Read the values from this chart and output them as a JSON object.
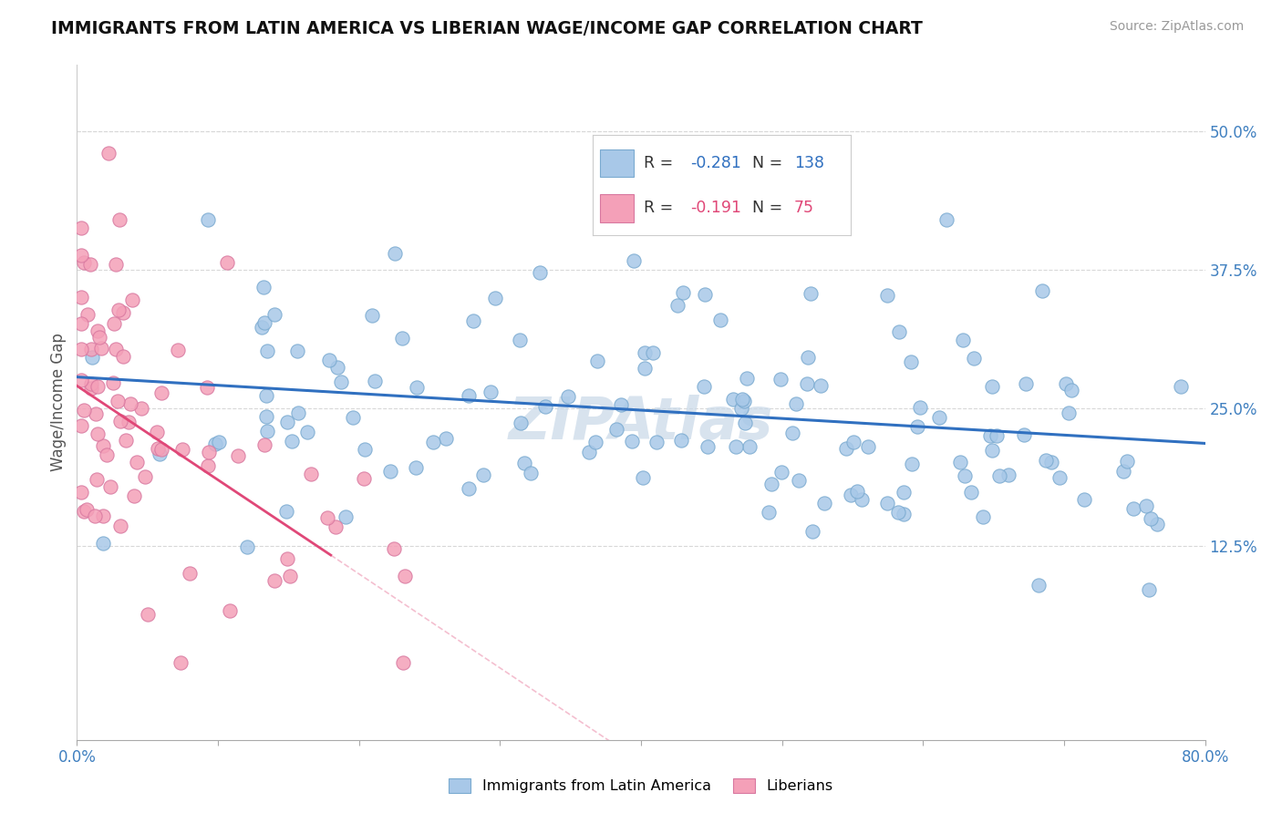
{
  "title": "IMMIGRANTS FROM LATIN AMERICA VS LIBERIAN WAGE/INCOME GAP CORRELATION CHART",
  "source": "Source: ZipAtlas.com",
  "legend_blue_label": "Immigrants from Latin America",
  "legend_pink_label": "Liberians",
  "R_blue": -0.281,
  "N_blue": 138,
  "R_pink": -0.191,
  "N_pink": 75,
  "color_blue": "#a8c8e8",
  "color_pink": "#f4a0b8",
  "color_regression_blue": "#3070c0",
  "color_regression_pink": "#e04878",
  "watermark": "ZIPAtlas",
  "xlim": [
    0.0,
    0.8
  ],
  "ylim": [
    -0.05,
    0.56
  ],
  "ytick_vals": [
    0.125,
    0.25,
    0.375,
    0.5
  ],
  "ytick_labels": [
    "12.5%",
    "25.0%",
    "37.5%",
    "50.0%"
  ],
  "grid_color": "#d8d8d8",
  "ylabel": "Wage/Income Gap",
  "blue_intercept": 0.278,
  "blue_slope": -0.075,
  "pink_intercept": 0.27,
  "pink_slope": -0.85
}
